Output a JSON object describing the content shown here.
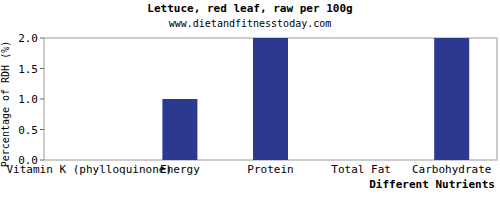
{
  "chart_data": {
    "type": "bar",
    "title": "Lettuce, red leaf, raw per 100g",
    "subtitle": "www.dietandfitnesstoday.com",
    "x_label": "Different Nutrients",
    "y_label": "Percentage of RDH (%)",
    "categories": [
      "Vitamin K (phylloquinone)",
      "Energy",
      "Protein",
      "Total Fat",
      "Carbohydrate"
    ],
    "values": [
      0,
      1,
      2,
      0,
      2
    ],
    "color": "#2b3990",
    "ylim": [
      0,
      2
    ],
    "yticks": [
      {
        "value": 0,
        "label": "0.0"
      },
      0.5,
      {
        "value": 1,
        "label": "1.0"
      },
      1.5,
      {
        "value": 2,
        "label": "2.0"
      }
    ],
    "grid": false
  }
}
